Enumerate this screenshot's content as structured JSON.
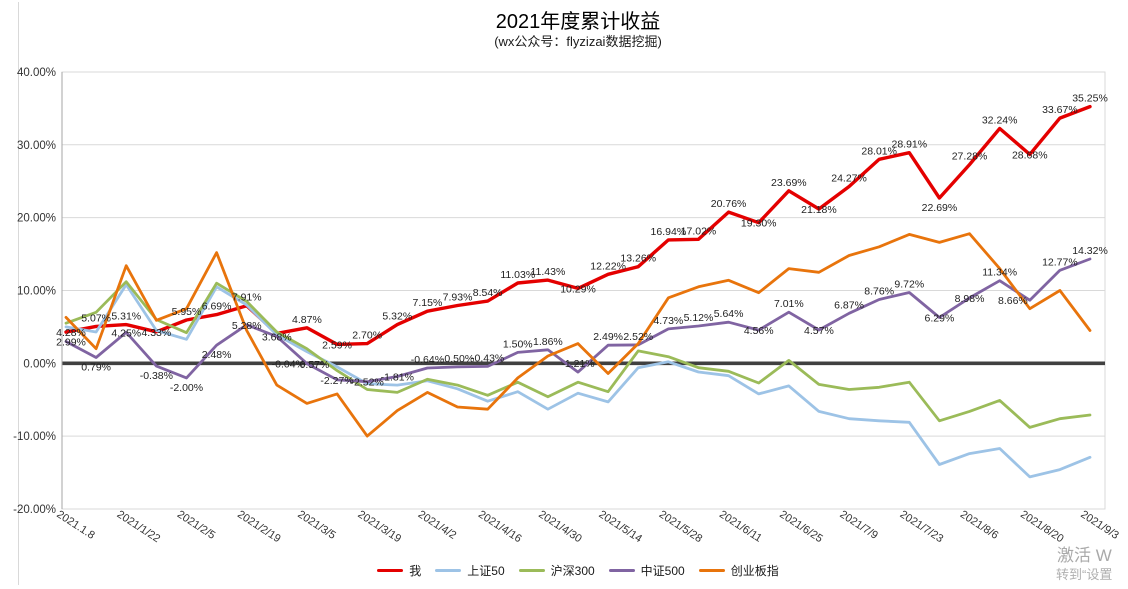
{
  "header": {
    "title": "2021年度累计收益",
    "subtitle": "(wx公众号：flyzizai数据挖掘)"
  },
  "watermark": {
    "line1": "激活 W",
    "line2": "转到“设置"
  },
  "colors": {
    "grid": "#d9d9d9",
    "plot_border": "#d9d9d9",
    "y_axis_line": "#a6a6a6",
    "zero_line": "#404040",
    "data_label": "#1f1f1f",
    "tick_label": "#333333",
    "watermark": "#9b9b9b"
  },
  "chart_data": {
    "type": "line",
    "title": "2021年度累计收益",
    "subtitle": "(wx公众号：flyzizai数据挖掘)",
    "ylim": [
      -20,
      40
    ],
    "grid": true,
    "legend_position": "bottom",
    "y_tick_labels": [
      "40.00%",
      "30.00%",
      "20.00%",
      "10.00%",
      "0.00%",
      "-10.00%",
      "-20.00%"
    ],
    "y_tick_values": [
      40,
      30,
      20,
      10,
      0,
      -10,
      -20
    ],
    "x_tick_labels": [
      "2021.1.8",
      "2021/1/22",
      "2021/2/5",
      "2021/2/19",
      "2021/3/5",
      "2021/3/19",
      "2021/4/2",
      "2021/4/16",
      "2021/4/30",
      "2021/5/14",
      "2021/5/28",
      "2021/6/11",
      "2021/6/25",
      "2021/7/9",
      "2021/7/23",
      "2021/8/6",
      "2021/8/20",
      "2021/9/3"
    ],
    "points_per_series": 35,
    "series": [
      {
        "name": "我",
        "color": "#e40000",
        "stroke_width": 3.4,
        "show_labels": true,
        "values": [
          4.28,
          5.07,
          5.31,
          4.33,
          5.95,
          6.69,
          7.91,
          4.1,
          4.87,
          2.59,
          2.7,
          5.32,
          7.15,
          7.93,
          8.54,
          11.03,
          11.43,
          10.29,
          12.22,
          13.26,
          16.94,
          17.02,
          20.76,
          19.3,
          23.69,
          21.18,
          24.27,
          28.01,
          28.91,
          22.69,
          27.28,
          32.24,
          28.68,
          33.67,
          35.25
        ],
        "label_pos": [
          "l",
          "a",
          "a",
          "s",
          "a",
          "a",
          "a",
          null,
          "a",
          "s",
          "a",
          "a",
          "a",
          "a",
          "a",
          "a",
          "a",
          "s",
          "a",
          "a",
          "a",
          "a",
          "a",
          "s",
          "a",
          "s",
          "a",
          "a",
          "a",
          "b",
          "a",
          "a",
          "s",
          "a",
          "a"
        ]
      },
      {
        "name": "上证50",
        "color": "#9dc3e6",
        "stroke_width": 2.8,
        "show_labels": false,
        "values": [
          5.0,
          4.3,
          10.8,
          4.5,
          3.3,
          10.5,
          8.0,
          3.9,
          1.6,
          -0.5,
          -2.8,
          -3.0,
          -2.4,
          -3.5,
          -5.2,
          -3.9,
          -6.3,
          -4.1,
          -5.3,
          -0.6,
          0.2,
          -1.2,
          -1.7,
          -4.2,
          -3.1,
          -6.6,
          -7.6,
          -7.9,
          -8.1,
          -13.9,
          -12.4,
          -11.7,
          -15.6,
          -14.6,
          -12.9
        ],
        "label_pos": null
      },
      {
        "name": "沪深300",
        "color": "#9bbb59",
        "stroke_width": 2.8,
        "show_labels": false,
        "values": [
          5.5,
          7.0,
          11.2,
          6.0,
          4.2,
          11.0,
          8.5,
          4.3,
          2.0,
          -1.0,
          -3.6,
          -4.0,
          -2.2,
          -3.0,
          -4.4,
          -2.6,
          -4.6,
          -2.6,
          -3.9,
          1.7,
          0.9,
          -0.6,
          -1.1,
          -2.7,
          0.4,
          -2.9,
          -3.6,
          -3.3,
          -2.6,
          -7.9,
          -6.6,
          -5.1,
          -8.8,
          -7.6,
          -7.1
        ],
        "label_pos": null
      },
      {
        "name": "中证500",
        "color": "#8064a2",
        "stroke_width": 2.8,
        "show_labels": true,
        "values": [
          2.99,
          0.79,
          4.25,
          -0.38,
          -2.0,
          2.48,
          5.28,
          3.68,
          -0.04,
          -2.27,
          -2.52,
          -1.81,
          -0.64,
          -0.5,
          -0.43,
          1.5,
          1.86,
          -1.21,
          2.49,
          2.52,
          4.73,
          5.12,
          5.64,
          4.56,
          7.01,
          4.57,
          6.87,
          8.76,
          9.72,
          6.29,
          8.98,
          11.34,
          8.66,
          12.77,
          14.32
        ],
        "label_pos": [
          "l",
          "b",
          "s",
          "b",
          "b",
          "b",
          "s",
          "s",
          "bl",
          "s",
          "s",
          "s",
          "a",
          "a",
          "a",
          "a",
          "a",
          "a",
          "a",
          "a",
          "a",
          "a",
          "a",
          "s",
          "a",
          "s",
          "a",
          "a",
          "a",
          "s",
          "s",
          "a",
          "bl",
          "a",
          "a"
        ]
      },
      {
        "name": "创业板指",
        "color": "#e8740c",
        "stroke_width": 2.8,
        "show_labels": false,
        "values": [
          6.3,
          2.0,
          13.4,
          5.9,
          7.5,
          15.2,
          4.5,
          -3.0,
          -5.5,
          -4.2,
          -10.0,
          -6.5,
          -4.0,
          -6.0,
          -6.3,
          -2.0,
          1.0,
          2.7,
          -1.4,
          2.7,
          9.0,
          10.5,
          11.4,
          9.7,
          13.0,
          12.5,
          14.8,
          16.0,
          17.7,
          16.6,
          17.8,
          13.0,
          7.5,
          10.0,
          4.5
        ],
        "label_pos": null
      }
    ],
    "extra_labels": [
      {
        "text": "0.57%",
        "x_index": 8.25,
        "value": -0.1
      }
    ]
  }
}
